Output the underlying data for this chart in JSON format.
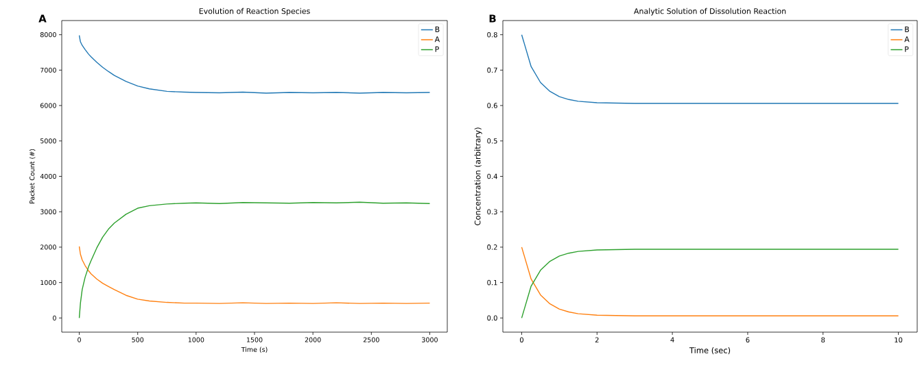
{
  "chart_data": [
    {
      "type": "line",
      "title": "Evolution of Reaction Species",
      "xlabel": "Time (s)",
      "ylabel": "Packet Count (#)",
      "annotations": [
        "A"
      ],
      "x": [
        0,
        10,
        25,
        50,
        80,
        100,
        150,
        200,
        250,
        300,
        400,
        500,
        600,
        750,
        900,
        1000,
        1200,
        1400,
        1600,
        1800,
        2000,
        2200,
        2400,
        2600,
        2800,
        3000
      ],
      "series": [
        {
          "name": "B",
          "color": "#1f77b4",
          "values": [
            7980,
            7800,
            7700,
            7580,
            7450,
            7380,
            7220,
            7080,
            6960,
            6850,
            6680,
            6550,
            6470,
            6400,
            6380,
            6370,
            6360,
            6380,
            6350,
            6370,
            6360,
            6370,
            6350,
            6370,
            6360,
            6370
          ]
        },
        {
          "name": "A",
          "color": "#ff7f0e",
          "values": [
            2020,
            1800,
            1640,
            1480,
            1330,
            1250,
            1100,
            980,
            890,
            800,
            640,
            530,
            480,
            440,
            420,
            420,
            410,
            430,
            410,
            420,
            410,
            430,
            410,
            420,
            410,
            420
          ]
        },
        {
          "name": "P",
          "color": "#2ca02c",
          "values": [
            0,
            420,
            800,
            1150,
            1450,
            1610,
            1980,
            2280,
            2510,
            2680,
            2930,
            3100,
            3170,
            3220,
            3240,
            3250,
            3230,
            3260,
            3250,
            3240,
            3260,
            3250,
            3270,
            3240,
            3250,
            3230
          ]
        }
      ],
      "xlim": [
        -150,
        3150
      ],
      "ylim": [
        -400,
        8400
      ],
      "xticks": [
        0,
        500,
        1000,
        1500,
        2000,
        2500,
        3000
      ],
      "yticks": [
        0,
        1000,
        2000,
        3000,
        4000,
        5000,
        6000,
        7000,
        8000
      ],
      "grid": false,
      "legend": "top right"
    },
    {
      "type": "line",
      "title": "Analytic Solution of Dissolution Reaction",
      "xlabel": "Time (sec)",
      "ylabel": "Concentration (arbitrary)",
      "annotations": [
        "B"
      ],
      "x": [
        0,
        0.25,
        0.5,
        0.75,
        1,
        1.25,
        1.5,
        2,
        2.5,
        3,
        4,
        6,
        8,
        10
      ],
      "series": [
        {
          "name": "B",
          "color": "#1f77b4",
          "values": [
            0.8,
            0.71,
            0.665,
            0.64,
            0.625,
            0.617,
            0.612,
            0.608,
            0.607,
            0.606,
            0.606,
            0.606,
            0.606,
            0.606
          ]
        },
        {
          "name": "A",
          "color": "#ff7f0e",
          "values": [
            0.2,
            0.11,
            0.065,
            0.04,
            0.025,
            0.017,
            0.012,
            0.008,
            0.007,
            0.006,
            0.006,
            0.006,
            0.006,
            0.006
          ]
        },
        {
          "name": "P",
          "color": "#2ca02c",
          "values": [
            0,
            0.09,
            0.135,
            0.16,
            0.175,
            0.183,
            0.188,
            0.192,
            0.193,
            0.194,
            0.194,
            0.194,
            0.194,
            0.194
          ]
        }
      ],
      "xlim": [
        -0.5,
        10.5
      ],
      "ylim": [
        -0.04,
        0.84
      ],
      "xticks": [
        0,
        2,
        4,
        6,
        8,
        10
      ],
      "yticks": [
        {
          "value": 0,
          "label": "0.0"
        },
        0.1,
        0.2,
        0.3,
        0.4,
        0.5,
        0.6,
        0.7,
        0.8
      ],
      "grid": false,
      "legend": "top right"
    }
  ]
}
